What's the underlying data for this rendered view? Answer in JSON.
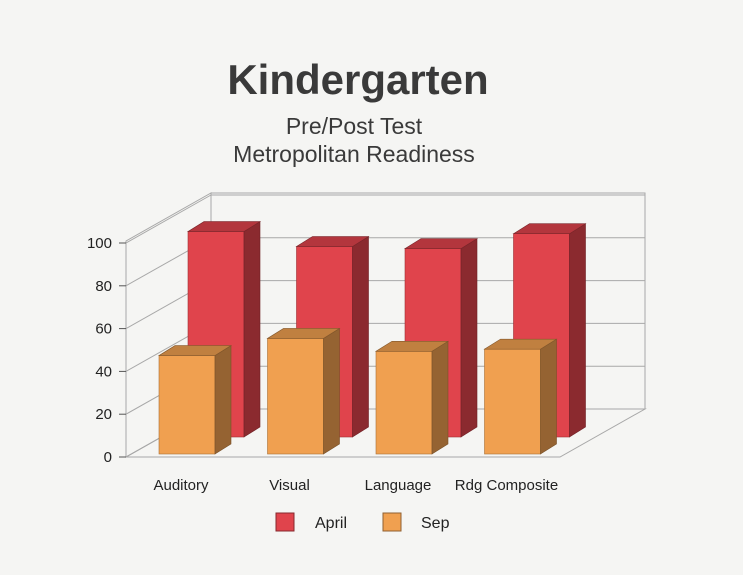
{
  "chart_data": {
    "type": "bar",
    "title": "Kindergarten",
    "subtitle_lines": [
      "Pre/Post Test",
      "Metropolitan Readiness"
    ],
    "categories": [
      "Auditory",
      "Visual",
      "Language",
      "Rdg Composite"
    ],
    "series": [
      {
        "name": "April",
        "values": [
          96,
          89,
          88,
          95
        ],
        "color": "#e0444c"
      },
      {
        "name": "Sep",
        "values": [
          46,
          54,
          48,
          49
        ],
        "color": "#f0a050"
      }
    ],
    "ylim": [
      0,
      100
    ],
    "yticks": [
      "0",
      "20",
      "40",
      "60",
      "80",
      "100"
    ],
    "grid": true,
    "legend_position": "bottom",
    "style": "3d"
  }
}
